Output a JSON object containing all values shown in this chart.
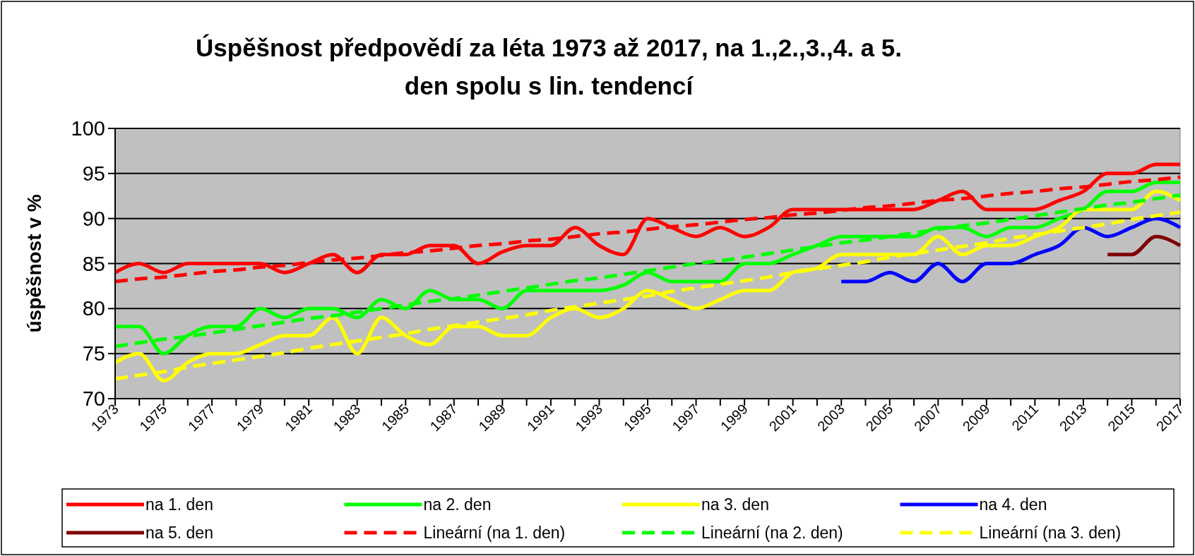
{
  "chart_data": {
    "type": "line",
    "title": "Úspěšnost předpovědí za léta 1973 až 2017, na 1.,2.,3.,4. a 5.\nden spolu s lin. tendencí",
    "ylabel": "úspěšnost v %",
    "x": [
      1973,
      1974,
      1975,
      1976,
      1977,
      1978,
      1979,
      1980,
      1981,
      1982,
      1983,
      1984,
      1985,
      1986,
      1987,
      1988,
      1989,
      1990,
      1991,
      1992,
      1993,
      1994,
      1995,
      1996,
      1997,
      1998,
      1999,
      2000,
      2001,
      2002,
      2003,
      2004,
      2005,
      2006,
      2007,
      2008,
      2009,
      2010,
      2011,
      2012,
      2013,
      2014,
      2015,
      2016,
      2017
    ],
    "xlim": [
      1973,
      2017
    ],
    "xticks": [
      1973,
      {
        "value": 1974,
        "label": null
      },
      1975,
      {
        "value": 1976,
        "label": null
      },
      1977,
      {
        "value": 1978,
        "label": null
      },
      1979,
      {
        "value": 1980,
        "label": null
      },
      1981,
      {
        "value": 1982,
        "label": null
      },
      1983,
      {
        "value": 1984,
        "label": null
      },
      1985,
      {
        "value": 1986,
        "label": null
      },
      1987,
      {
        "value": 1988,
        "label": null
      },
      1989,
      {
        "value": 1990,
        "label": null
      },
      1991,
      {
        "value": 1992,
        "label": null
      },
      1993,
      {
        "value": 1994,
        "label": null
      },
      1995,
      {
        "value": 1996,
        "label": null
      },
      1997,
      {
        "value": 1998,
        "label": null
      },
      1999,
      {
        "value": 2000,
        "label": null
      },
      2001,
      {
        "value": 2002,
        "label": null
      },
      2003,
      {
        "value": 2004,
        "label": null
      },
      2005,
      {
        "value": 2006,
        "label": null
      },
      2007,
      {
        "value": 2008,
        "label": null
      },
      2009,
      {
        "value": 2010,
        "label": null
      },
      2011,
      {
        "value": 2012,
        "label": null
      },
      2013,
      {
        "value": 2014,
        "label": null
      },
      2015,
      {
        "value": 2016,
        "label": null
      },
      2017
    ],
    "ylim": [
      70,
      100
    ],
    "yticks": [
      70,
      75,
      80,
      85,
      90,
      95,
      100
    ],
    "grid": "y",
    "legend": "bottom",
    "series": [
      {
        "name": "na 1. den",
        "color": "#ff0000",
        "values": [
          84,
          85,
          84,
          85,
          85,
          85,
          85,
          84,
          85,
          86,
          84,
          86,
          86,
          87,
          87,
          85,
          86.3,
          87,
          87,
          89,
          87,
          86,
          90,
          89,
          88,
          89,
          88,
          89,
          91,
          91,
          91,
          91,
          91,
          91,
          92,
          93,
          91,
          91,
          91,
          92,
          93,
          95,
          95,
          96,
          96
        ]
      },
      {
        "name": "na 2. den",
        "color": "#00ff00",
        "values": [
          78,
          78,
          75,
          77,
          78,
          78,
          80,
          79,
          80,
          80,
          79,
          81,
          80,
          82,
          81,
          81,
          80,
          82,
          82,
          82,
          82,
          82.6,
          84,
          83,
          83,
          83,
          85,
          85,
          86,
          87,
          88,
          88,
          88,
          88,
          89,
          89,
          88,
          89,
          89,
          90,
          91,
          93,
          93,
          94,
          94
        ]
      },
      {
        "name": "na 3. den",
        "color": "#ffff00",
        "values": [
          74,
          75,
          72,
          74,
          75,
          75,
          76,
          77,
          77,
          79,
          75,
          79,
          77,
          76,
          78,
          78,
          77,
          77,
          79,
          80,
          79,
          80,
          82,
          81,
          80,
          81,
          82,
          82,
          84,
          84.5,
          86,
          86,
          86,
          86,
          88,
          86,
          87,
          87,
          88,
          89,
          91,
          91,
          91,
          93,
          92
        ]
      },
      {
        "name": "na 4. den",
        "color": "#0000ff",
        "values": [
          null,
          null,
          null,
          null,
          null,
          null,
          null,
          null,
          null,
          null,
          null,
          null,
          null,
          null,
          null,
          null,
          null,
          null,
          null,
          null,
          null,
          null,
          null,
          null,
          null,
          null,
          null,
          null,
          null,
          null,
          83,
          83,
          84,
          83,
          85,
          83,
          85,
          85,
          86,
          87,
          89,
          88,
          89,
          90,
          89
        ]
      },
      {
        "name": "na 5. den",
        "color": "#800000",
        "values": [
          null,
          null,
          null,
          null,
          null,
          null,
          null,
          null,
          null,
          null,
          null,
          null,
          null,
          null,
          null,
          null,
          null,
          null,
          null,
          null,
          null,
          null,
          null,
          null,
          null,
          null,
          null,
          null,
          null,
          null,
          null,
          null,
          null,
          null,
          null,
          null,
          null,
          null,
          null,
          null,
          null,
          86,
          86,
          88,
          87
        ]
      },
      {
        "name": "Lineární (na 1. den)",
        "color": "#ff0000",
        "line_style": "dashed",
        "values": [
          83.0,
          83.3,
          83.5,
          83.8,
          84.1,
          84.3,
          84.6,
          84.8,
          85.1,
          85.4,
          85.6,
          85.9,
          86.2,
          86.4,
          86.7,
          87.0,
          87.2,
          87.5,
          87.7,
          88.0,
          88.3,
          88.5,
          88.8,
          89.1,
          89.3,
          89.6,
          89.9,
          90.1,
          90.4,
          90.6,
          90.9,
          91.2,
          91.4,
          91.7,
          92.0,
          92.2,
          92.5,
          92.8,
          93.0,
          93.3,
          93.5,
          93.8,
          94.1,
          94.3,
          94.6
        ]
      },
      {
        "name": "Lineární (na 2. den)",
        "color": "#00ff00",
        "line_style": "dashed",
        "values": [
          75.8,
          76.2,
          76.6,
          76.9,
          77.3,
          77.7,
          78.1,
          78.5,
          78.9,
          79.2,
          79.6,
          80.0,
          80.4,
          80.8,
          81.1,
          81.5,
          81.9,
          82.3,
          82.7,
          83.1,
          83.4,
          83.8,
          84.2,
          84.6,
          85.0,
          85.3,
          85.7,
          86.1,
          86.5,
          86.9,
          87.3,
          87.6,
          88.0,
          88.4,
          88.8,
          89.2,
          89.5,
          89.9,
          90.3,
          90.7,
          91.1,
          91.5,
          91.8,
          92.2,
          92.6
        ]
      },
      {
        "name": "Lineární (na 3. den)",
        "color": "#ffff00",
        "line_style": "dashed",
        "values": [
          72.2,
          72.6,
          73.0,
          73.5,
          73.9,
          74.3,
          74.7,
          75.1,
          75.6,
          76.0,
          76.4,
          76.8,
          77.2,
          77.7,
          78.1,
          78.5,
          78.9,
          79.3,
          79.8,
          80.2,
          80.6,
          81.0,
          81.4,
          81.9,
          82.3,
          82.7,
          83.1,
          83.5,
          84.0,
          84.4,
          84.8,
          85.2,
          85.7,
          86.1,
          86.5,
          86.9,
          87.3,
          87.8,
          88.2,
          88.6,
          89.0,
          89.4,
          89.9,
          90.3,
          90.7
        ]
      }
    ]
  }
}
